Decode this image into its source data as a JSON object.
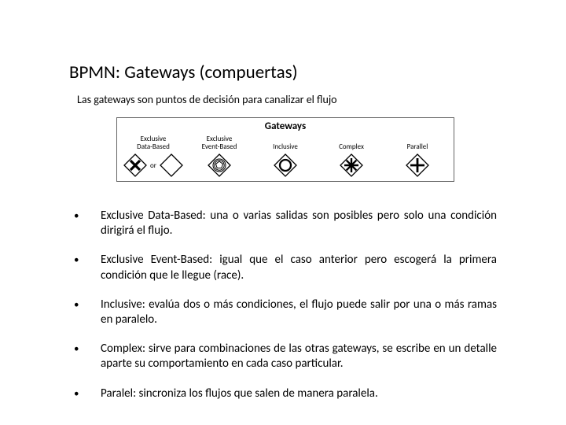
{
  "title": "BPMN: Gateways (compuertas)",
  "subtitle": "Las gateways son puntos de decisión para canalizar el flujo",
  "diagram": {
    "header": "Gateways",
    "or_label": "or",
    "columns": [
      {
        "label": "Exclusive\nData-Based"
      },
      {
        "label": "Exclusive\nEvent-Based"
      },
      {
        "label": "Inclusive"
      },
      {
        "label": "Complex"
      },
      {
        "label": "Parallel"
      }
    ],
    "stroke": "#000000",
    "fill": "#ffffff"
  },
  "bullets": [
    "Exclusive Data-Based: una o varias salidas son posibles pero solo una condición dirigirá el flujo.",
    "Exclusive Event-Based: igual que el caso anterior pero escogerá la primera condición que le llegue (race).",
    "Inclusive: evalúa dos o más condiciones, el flujo puede salir por una o más ramas en paralelo.",
    "Complex: sirve para combinaciones de las otras gateways, se escribe en un detalle aparte su comportamiento en cada caso particular.",
    "Paralel: sincroniza los flujos que salen de manera paralela."
  ]
}
